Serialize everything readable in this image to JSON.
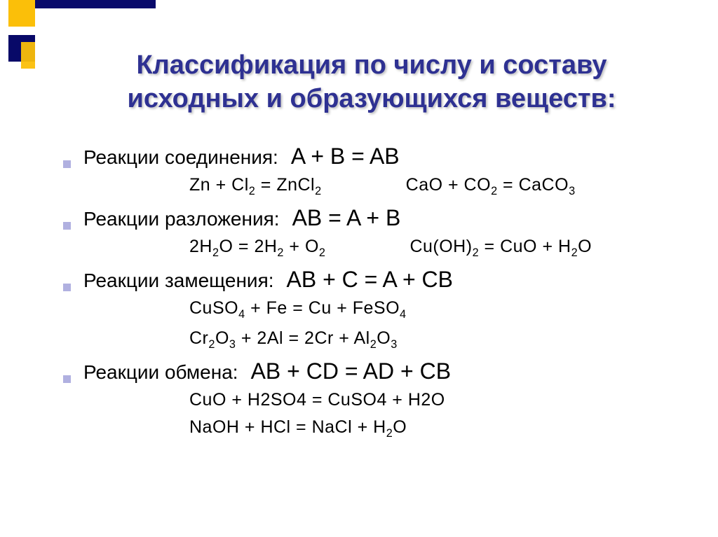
{
  "title": "Классификация по числу и составу исходных и образующихся веществ:",
  "colors": {
    "title_color": "#2e3192",
    "bullet_color": "#b0b0e0",
    "deco_yellow": "#fbbf09",
    "deco_navy": "#090a6b",
    "background": "#ffffff",
    "text_color": "#000000"
  },
  "typography": {
    "title_fontsize": 38,
    "label_fontsize": 28,
    "scheme_fontsize": 32,
    "equation_fontsize": 25,
    "font_family": "Arial"
  },
  "sections": [
    {
      "label": "Реакции соединения:",
      "scheme": "A + B = AB",
      "equations": [
        "Zn + Cl₂ = ZnCl₂",
        "CaO + CO₂ = CaCO₃"
      ]
    },
    {
      "label": "Реакции разложения:",
      "scheme": "AB = A + B",
      "equations": [
        "2H₂O = 2H₂ + O₂",
        "Cu(OH)₂ = CuO + H₂O"
      ]
    },
    {
      "label": "Реакции замещения:",
      "scheme": "AB + C = A + CB",
      "equations": [
        "CuSO₄ + Fe = Cu + FeSO₄",
        "Cr₂O₃ + 2Al = 2Cr + Al₂O₃"
      ]
    },
    {
      "label": "Реакции обмена:",
      "scheme": "AB + CD = AD + CB",
      "equations": [
        "CuO + H2SO4 = CuSO4 + H2O",
        "NaOH + HCl = NaCl + H₂O"
      ]
    }
  ]
}
